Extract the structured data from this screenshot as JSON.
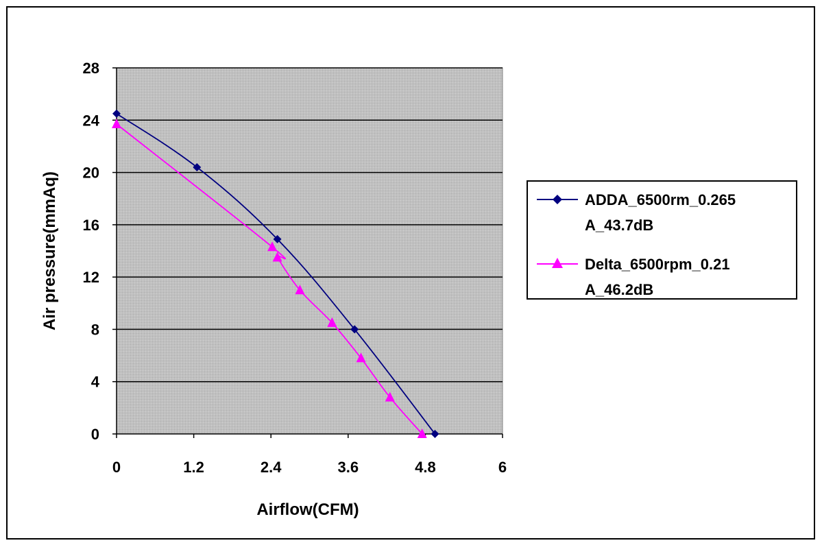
{
  "chart_data": {
    "type": "line",
    "xlabel": "Airflow(CFM)",
    "ylabel": "Air pressure(mmAq)",
    "xlim": [
      0,
      6
    ],
    "ylim": [
      0,
      28
    ],
    "x_ticks": [
      "0",
      "1.2",
      "2.4",
      "3.6",
      "4.8",
      "6"
    ],
    "x_tick_values": [
      0,
      1.2,
      2.4,
      3.6,
      4.8,
      6
    ],
    "y_ticks": [
      "0",
      "4",
      "8",
      "12",
      "16",
      "20",
      "24",
      "28"
    ],
    "y_tick_values": [
      0,
      4,
      8,
      12,
      16,
      20,
      24,
      28
    ],
    "grid": "horizontal",
    "legend_position": "right",
    "plot_background": "#c0c0c0",
    "series": [
      {
        "name_lines": [
          "ADDA_6500rm_0.265",
          "A_43.7dB"
        ],
        "color": "#000080",
        "marker": "diamond",
        "points": [
          [
            0,
            24.5
          ],
          [
            1.25,
            20.4
          ],
          [
            2.5,
            14.9
          ],
          [
            3.7,
            8.0
          ],
          [
            4.95,
            0
          ]
        ]
      },
      {
        "name_lines": [
          "Delta_6500rpm_0.21",
          "A_46.2dB"
        ],
        "color": "#ff00ff",
        "marker": "triangle",
        "points": [
          [
            0,
            23.7
          ],
          [
            2.42,
            14.3
          ],
          [
            2.5,
            13.5
          ],
          [
            2.85,
            11.0
          ],
          [
            3.35,
            8.5
          ],
          [
            3.8,
            5.8
          ],
          [
            4.25,
            2.8
          ],
          [
            4.75,
            0
          ]
        ]
      }
    ]
  }
}
